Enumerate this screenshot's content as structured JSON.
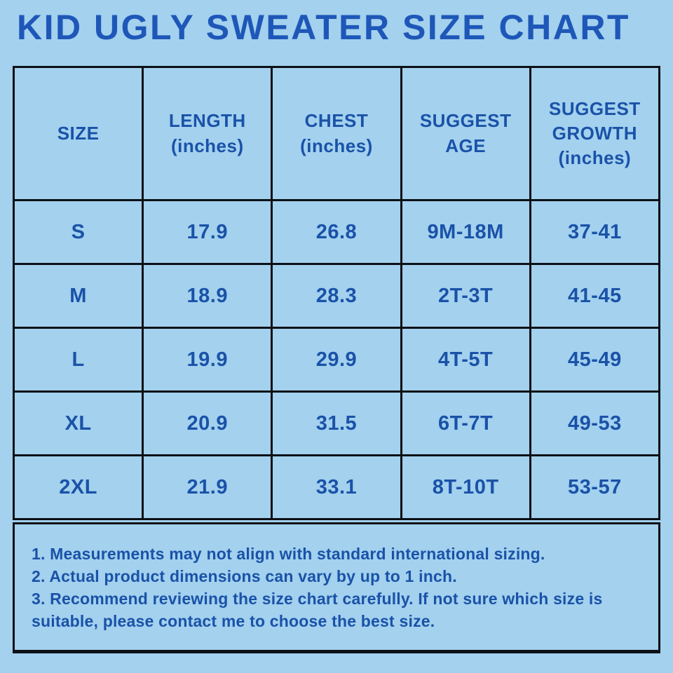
{
  "title": "KID UGLY SWEATER SIZE CHART",
  "colors": {
    "background": "#A3D1EE",
    "line": "#0D1015",
    "title_text": "#1E57B8",
    "body_text": "#1A52A8"
  },
  "chart_data": {
    "type": "table",
    "title": "KID UGLY SWEATER SIZE CHART",
    "columns": [
      "SIZE",
      "LENGTH\n(inches)",
      "CHEST\n(inches)",
      "SUGGEST\nAGE",
      "SUGGEST\nGROWTH\n(inches)"
    ],
    "rows": [
      [
        "S",
        "17.9",
        "26.8",
        "9M-18M",
        "37-41"
      ],
      [
        "M",
        "18.9",
        "28.3",
        "2T-3T",
        "41-45"
      ],
      [
        "L",
        "19.9",
        "29.9",
        "4T-5T",
        "45-49"
      ],
      [
        "XL",
        "20.9",
        "31.5",
        "6T-7T",
        "49-53"
      ],
      [
        "2XL",
        "21.9",
        "33.1",
        "8T-10T",
        "53-57"
      ]
    ]
  },
  "notes": {
    "items": [
      "1. Measurements may not align with standard international sizing.",
      "2. Actual product dimensions can vary by up to 1 inch.",
      "3. Recommend reviewing the size chart carefully. If not sure which size is suitable, please contact me to choose the best size."
    ]
  }
}
